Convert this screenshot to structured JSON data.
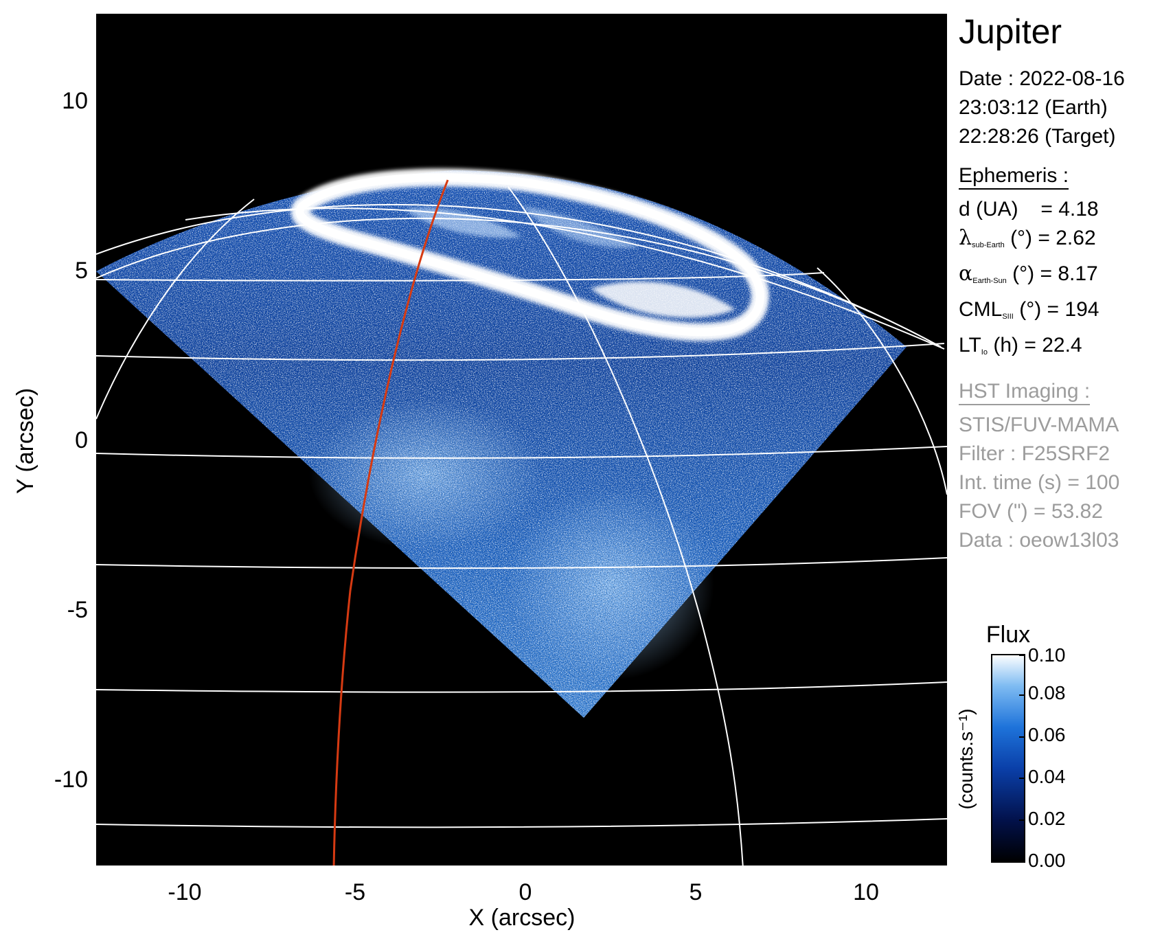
{
  "title": "Jupiter",
  "observation": {
    "date_line": "Date : 2022-08-16",
    "earth_time_line": "23:03:12 (Earth)",
    "target_time_line": "22:28:26 (Target)"
  },
  "ephemeris": {
    "heading": "Ephemeris :",
    "distance": {
      "label": "d (UA)",
      "value_text": "= 4.18"
    },
    "sub_earth_latitude": {
      "symbol": "λ",
      "subscript": "sub-Earth",
      "unit": "(°)",
      "value_text": "= 2.62"
    },
    "phase_angle": {
      "symbol": "α",
      "subscript": "Earth-Sun",
      "unit": "(°)",
      "value_text": "= 8.17"
    },
    "cml": {
      "symbol": "CML",
      "subscript": "SIII",
      "unit": "(°)",
      "value_text": "= 194"
    },
    "io_local_time": {
      "symbol": "LT",
      "subscript": "Io",
      "unit": "(h)",
      "value_text": "= 22.4"
    }
  },
  "hst_imaging": {
    "heading": "HST Imaging :",
    "instrument": "STIS/FUV-MAMA",
    "filter": "Filter : F25SRF2",
    "integration_time": "Int. time (s) = 100",
    "fov": "FOV (\") = 53.82",
    "dataset": "Data : oeow13l03"
  },
  "colorbar": {
    "title": "Flux",
    "label": "(counts.s⁻¹)",
    "ticks": [
      "0.00",
      "0.02",
      "0.04",
      "0.06",
      "0.08",
      "0.10"
    ],
    "colors": [
      "#000000",
      "#02114a",
      "#0a3fa8",
      "#1e73da",
      "#7fbcf2",
      "#ffffff"
    ]
  },
  "axes": {
    "x_label": "X (arcsec)",
    "y_label": "Y (arcsec)",
    "x_ticks": [
      "-10",
      "-5",
      "0",
      "5",
      "10"
    ],
    "y_ticks": [
      "10",
      "5",
      "0",
      "-5",
      "-10"
    ],
    "x_range": [
      -12.5,
      12.5
    ],
    "y_range": [
      -12.5,
      12.5
    ]
  },
  "overlay_colors": {
    "grid": "#ffffff",
    "meridian": "#d63a12",
    "background": "#000000",
    "auroral_oval": "#ffffff"
  }
}
